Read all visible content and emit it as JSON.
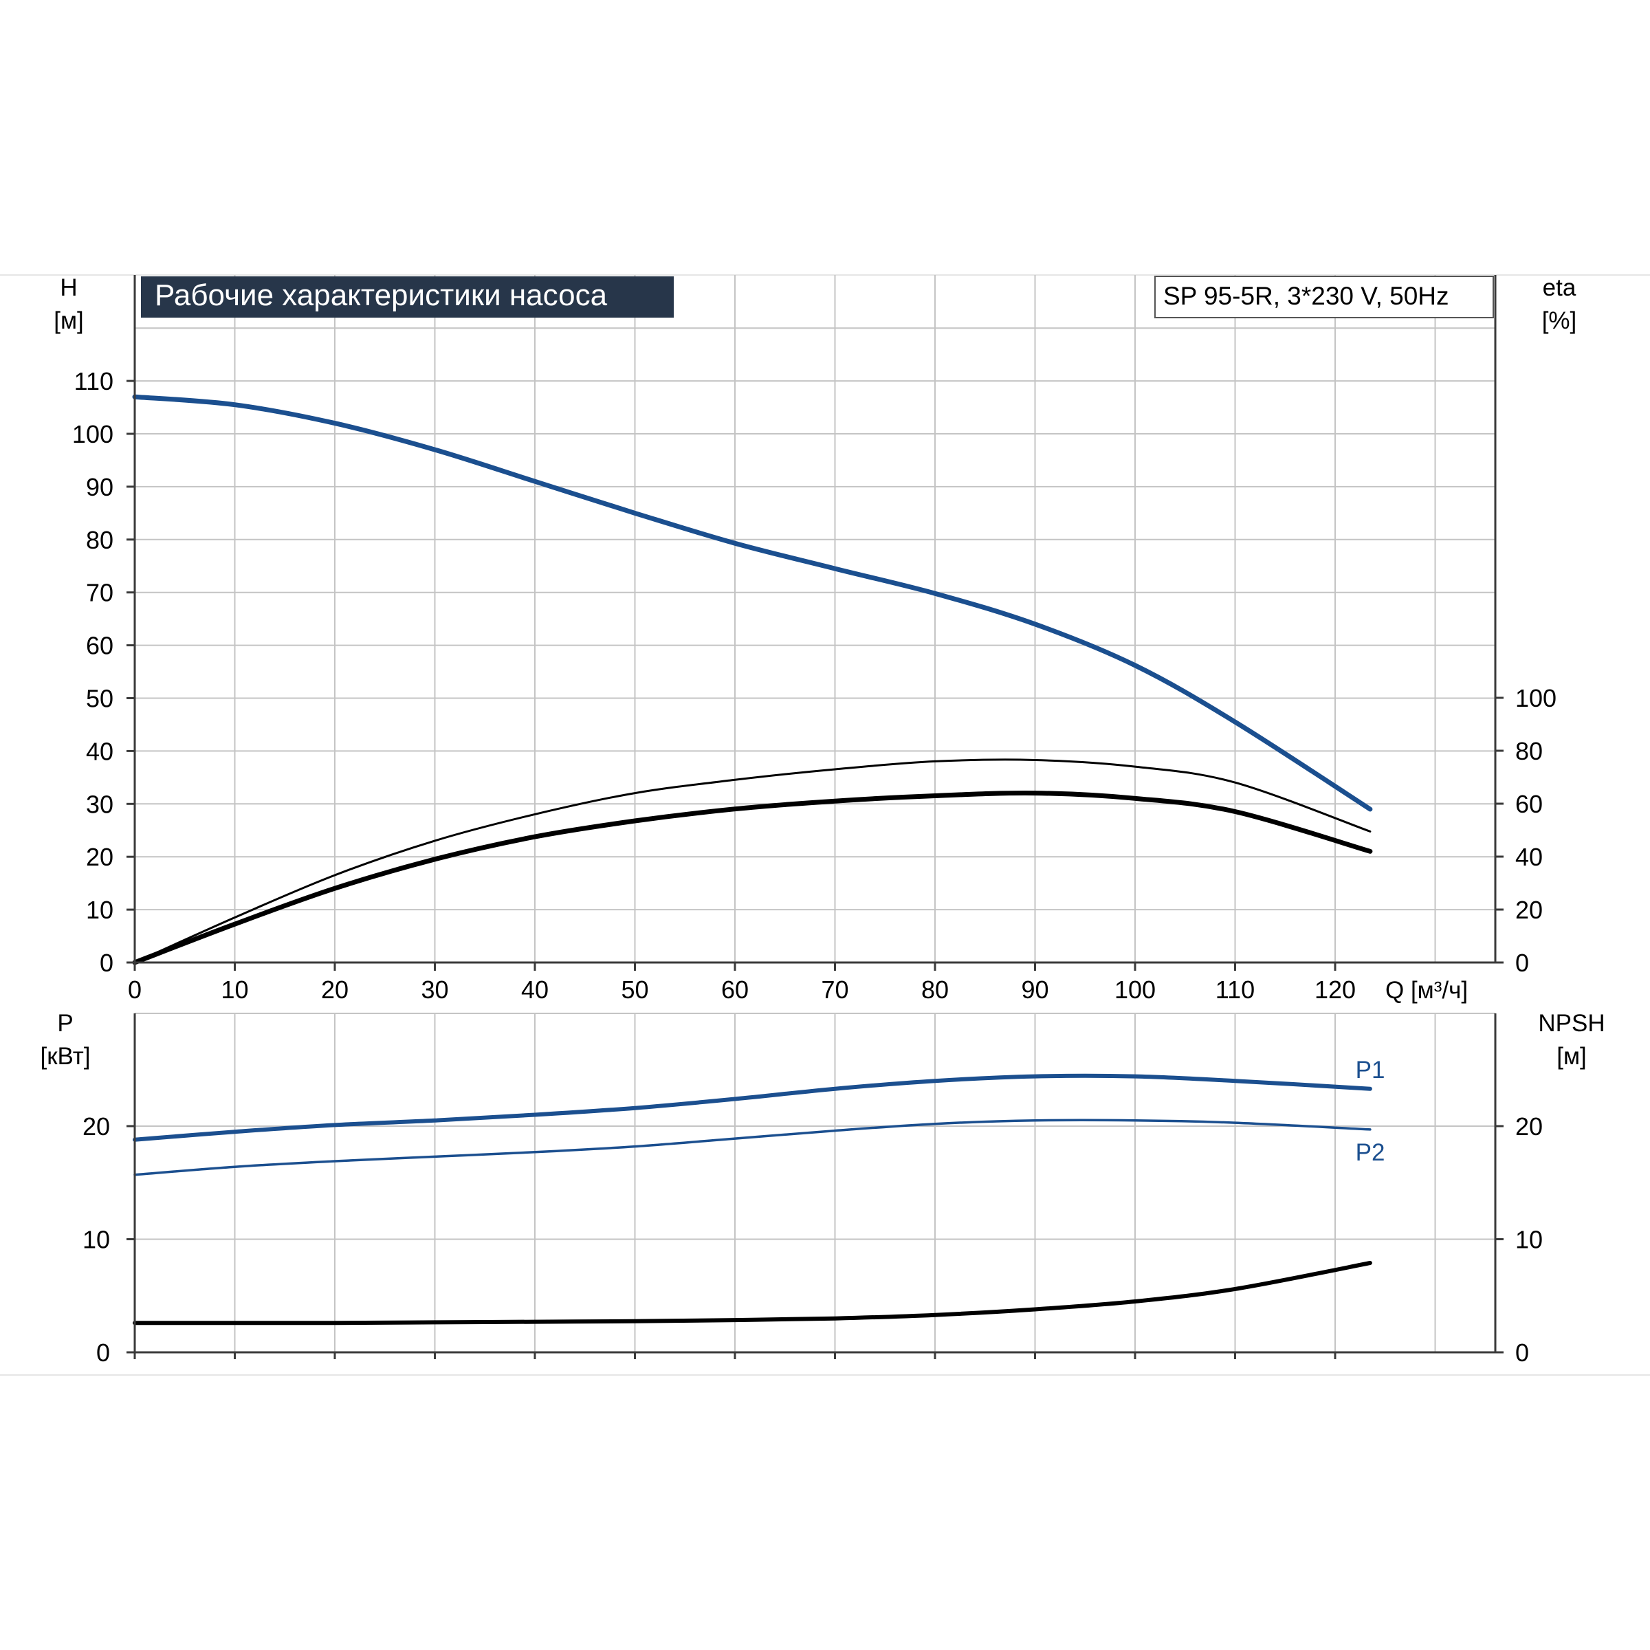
{
  "chart_data": [
    {
      "type": "line",
      "title": "Рабочие характеристики насоса",
      "model_label": "SP 95-5R, 3*230 V, 50Hz",
      "xlabel": "Q [м³/ч]",
      "xlim": [
        0,
        135
      ],
      "xticks": [
        0,
        10,
        20,
        30,
        40,
        50,
        60,
        70,
        80,
        90,
        100,
        110,
        120
      ],
      "left_axis": {
        "label_line1": "H",
        "label_line2": "[м]",
        "ylim": [
          0,
          120
        ],
        "ticks": [
          0,
          10,
          20,
          30,
          40,
          50,
          60,
          70,
          80,
          90,
          100,
          110
        ]
      },
      "right_axis": {
        "label_line1": "eta",
        "label_line2": "[%]",
        "ylim": [
          0,
          240
        ],
        "ticks": [
          0,
          20,
          40,
          60,
          80,
          100
        ]
      },
      "grid": true,
      "series": [
        {
          "axis": "left",
          "color": "#1b4f8f",
          "x": [
            0,
            10,
            20,
            30,
            40,
            50,
            60,
            70,
            80,
            90,
            100,
            110,
            123.5
          ],
          "y": [
            107,
            105.5,
            102,
            97,
            91,
            85,
            79.3,
            74.5,
            69.8,
            64,
            56.2,
            45.5,
            29
          ]
        },
        {
          "axis": "right",
          "color": "#000000",
          "x": [
            0,
            10,
            20,
            30,
            40,
            50,
            60,
            70,
            80,
            90,
            100,
            110,
            123.5
          ],
          "y": [
            0,
            17,
            33,
            46,
            56,
            64,
            69,
            73,
            76,
            76.5,
            74,
            68,
            49.5
          ]
        },
        {
          "axis": "right",
          "color": "#000000",
          "x": [
            0,
            10,
            20,
            30,
            40,
            50,
            60,
            70,
            80,
            90,
            100,
            110,
            123.5
          ],
          "y": [
            0,
            14.5,
            28,
            39,
            47.5,
            53.5,
            58,
            61,
            63,
            64,
            62,
            57,
            42
          ]
        }
      ]
    },
    {
      "type": "line",
      "xlim": [
        0,
        135
      ],
      "left_axis": {
        "label_line1": "P",
        "label_line2": "[кВт]",
        "ylim": [
          0,
          30
        ],
        "ticks": [
          0,
          10,
          20
        ]
      },
      "right_axis": {
        "label_line1": "NPSH",
        "label_line2": "[м]",
        "ylim": [
          0,
          30
        ],
        "ticks": [
          0,
          10,
          20
        ]
      },
      "grid": true,
      "series": [
        {
          "name": "P1",
          "axis": "left",
          "color": "#1b4f8f",
          "x": [
            0,
            10,
            20,
            30,
            40,
            50,
            60,
            70,
            80,
            90,
            100,
            110,
            123.5
          ],
          "y": [
            18.8,
            19.5,
            20.1,
            20.5,
            21,
            21.6,
            22.4,
            23.3,
            24,
            24.4,
            24.4,
            24,
            23.3
          ]
        },
        {
          "name": "P2",
          "axis": "left",
          "color": "#1b4f8f",
          "x": [
            0,
            10,
            20,
            30,
            40,
            50,
            60,
            70,
            80,
            90,
            100,
            110,
            123.5
          ],
          "y": [
            15.7,
            16.4,
            16.9,
            17.3,
            17.7,
            18.2,
            18.9,
            19.6,
            20.2,
            20.5,
            20.5,
            20.3,
            19.7
          ]
        },
        {
          "axis": "right",
          "color": "#000000",
          "x": [
            0,
            10,
            20,
            30,
            40,
            50,
            60,
            70,
            80,
            90,
            100,
            110,
            123.5
          ],
          "y": [
            2.6,
            2.6,
            2.6,
            2.65,
            2.7,
            2.75,
            2.85,
            3,
            3.3,
            3.8,
            4.5,
            5.6,
            7.9
          ]
        }
      ]
    }
  ]
}
